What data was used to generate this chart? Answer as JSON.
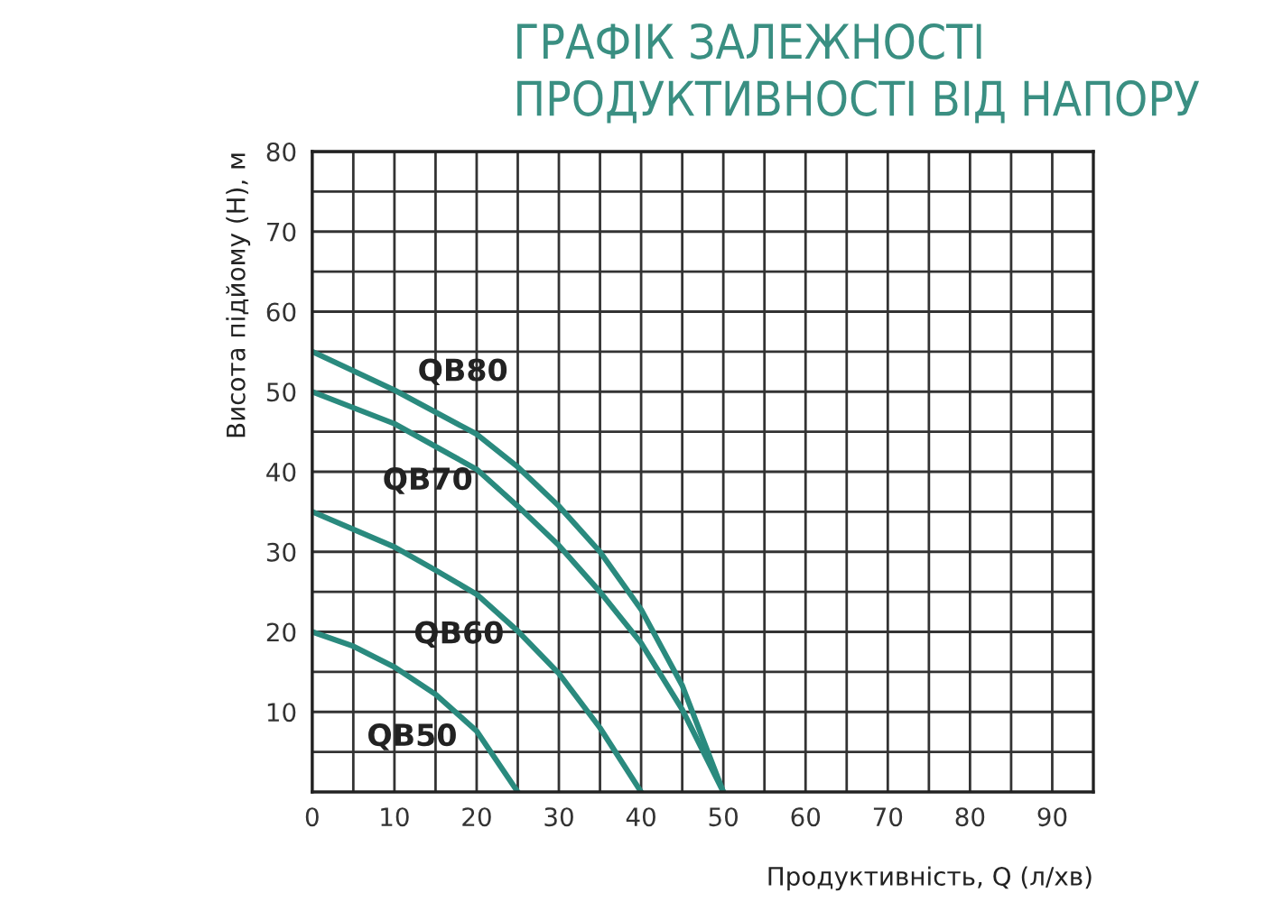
{
  "chart_data": {
    "type": "line",
    "title": "ГРАФІК ЗАЛЕЖНОСТІ\nПРОДУКТИВНОСТІ ВІД НАПОРУ",
    "xlabel": "Продуктивність, Q (л/хв)",
    "ylabel": "Висота підйому (H), м",
    "xlim": [
      0,
      95
    ],
    "ylim": [
      0,
      80
    ],
    "xticks": [
      0,
      {
        "value": 5,
        "label": null
      },
      10,
      {
        "value": 15,
        "label": null
      },
      20,
      {
        "value": 25,
        "label": null
      },
      30,
      {
        "value": 35,
        "label": null
      },
      40,
      {
        "value": 45,
        "label": null
      },
      50,
      {
        "value": 55,
        "label": null
      },
      60,
      {
        "value": 65,
        "label": null
      },
      70,
      {
        "value": 75,
        "label": null
      },
      80,
      {
        "value": 85,
        "label": null
      },
      90
    ],
    "yticks": [
      {
        "value": 5,
        "label": null
      },
      10,
      {
        "value": 15,
        "label": null
      },
      20,
      {
        "value": 25,
        "label": null
      },
      30,
      {
        "value": 35,
        "label": null
      },
      40,
      {
        "value": 45,
        "label": null
      },
      50,
      {
        "value": 55,
        "label": null
      },
      60,
      {
        "value": 65,
        "label": null
      },
      70,
      {
        "value": 75,
        "label": null
      },
      80
    ],
    "grid": true,
    "legend": false,
    "marker": "none",
    "line_style": "solid",
    "series": [
      {
        "name": "QB80",
        "color": "#2a8a7e",
        "x": [
          0,
          10,
          20,
          25,
          30,
          35,
          40,
          45,
          50
        ],
        "values": [
          55,
          50.2,
          44.7,
          40.6,
          35.7,
          30,
          22.8,
          13.3,
          0
        ]
      },
      {
        "name": "QB70",
        "color": "#2a8a7e",
        "x": [
          0,
          10,
          20,
          25,
          30,
          35,
          40,
          45,
          50
        ],
        "values": [
          50,
          46,
          40.3,
          35.7,
          30.8,
          25,
          18.6,
          10.3,
          0
        ]
      },
      {
        "name": "QB60",
        "color": "#2a8a7e",
        "x": [
          0,
          10,
          15,
          20,
          25,
          30,
          35,
          40
        ],
        "values": [
          35,
          30.6,
          27.7,
          24.7,
          20.1,
          14.8,
          8,
          0
        ]
      },
      {
        "name": "QB50",
        "color": "#2a8a7e",
        "x": [
          0,
          5,
          10,
          15,
          20,
          25
        ],
        "values": [
          20,
          18.2,
          15.6,
          12.2,
          7.6,
          0
        ]
      }
    ]
  }
}
